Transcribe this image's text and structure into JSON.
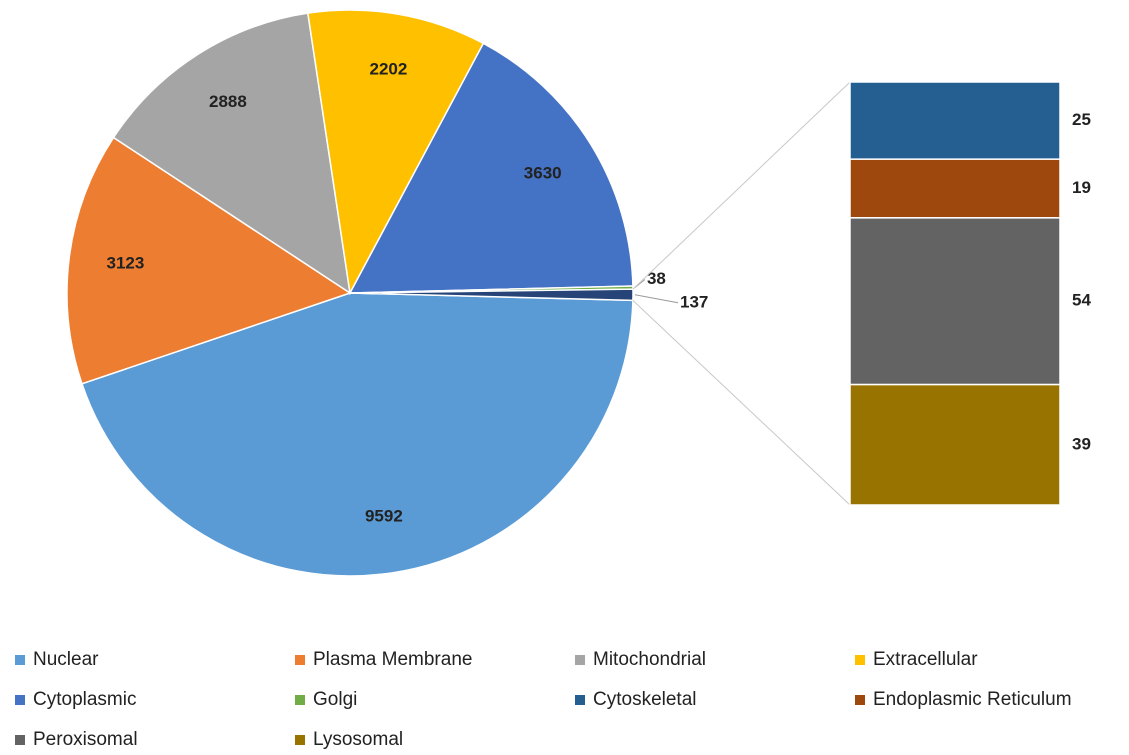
{
  "chart_data": [
    {
      "type": "pie",
      "categories": [
        "Nuclear",
        "Plasma Membrane",
        "Mitochondrial",
        "Extracellular",
        "Cytoplasmic",
        "Golgi",
        null
      ],
      "values": [
        9592,
        3123,
        2888,
        2202,
        3630,
        38,
        137
      ],
      "colors": [
        "#5b9bd5",
        "#ed7d31",
        "#a5a5a5",
        "#ffc000",
        "#4472c4",
        "#70ad47",
        "#264478"
      ]
    },
    {
      "type": "bar",
      "categories": [
        "Cytoskeletal",
        "Endoplasmic Reticulum",
        "Peroxisomal",
        "Lysosomal"
      ],
      "values": [
        25,
        19,
        54,
        39
      ],
      "colors": [
        "#255e91",
        "#9e480e",
        "#636363",
        "#997300"
      ]
    }
  ]
}
